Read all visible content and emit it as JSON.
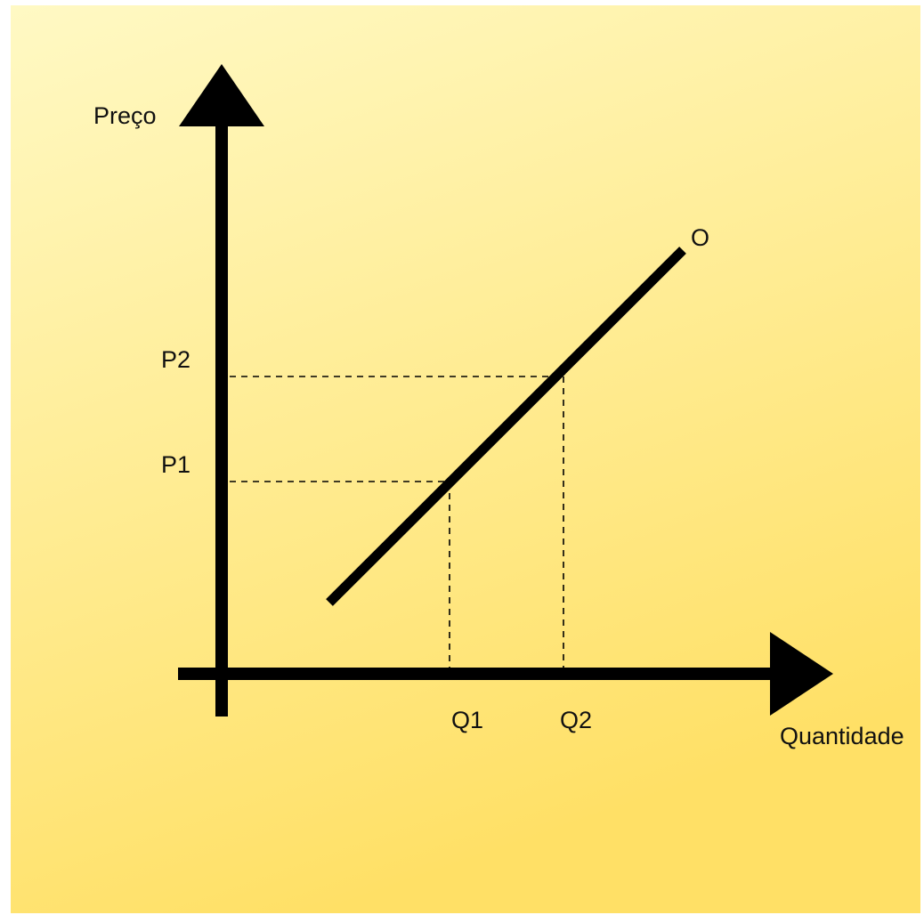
{
  "diagram": {
    "background": {
      "gradient_start": "#fff9c4",
      "gradient_end": "#ffe066",
      "border": "#ffffff"
    },
    "ink_color": "#000000",
    "axes": {
      "y_label": "Preço",
      "x_label": "Quantidade"
    },
    "curve": {
      "label": "O",
      "meaning": "supply"
    },
    "price_labels": [
      "P1",
      "P2"
    ],
    "quantity_labels": [
      "Q1",
      "Q2"
    ]
  }
}
